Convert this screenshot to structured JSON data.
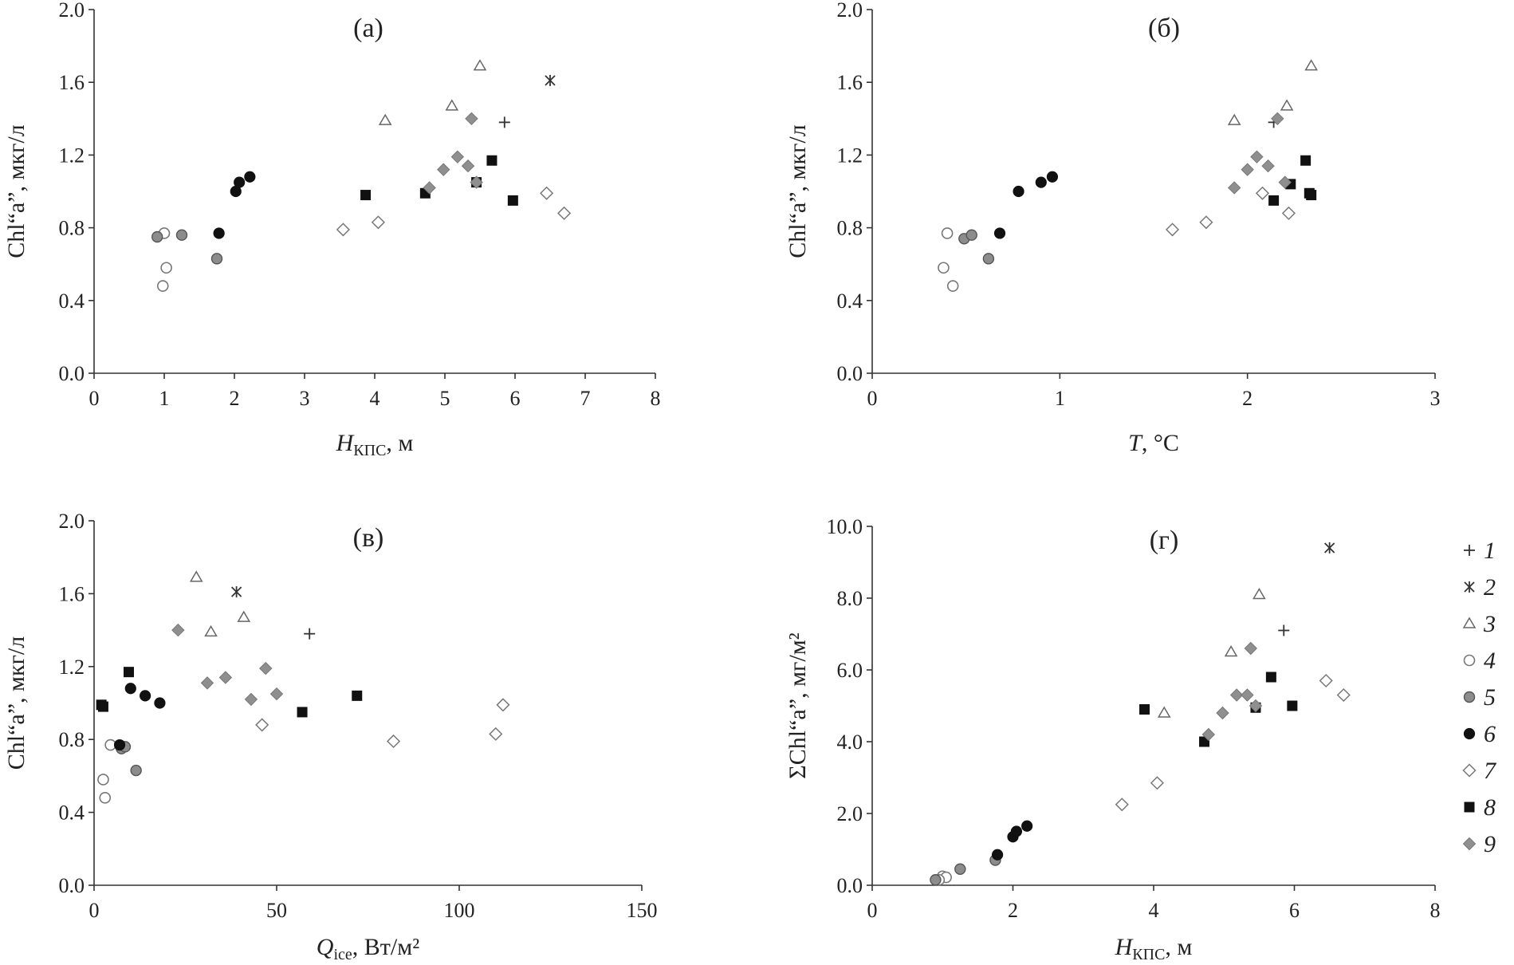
{
  "chart_data": [
    {
      "type": "scatter",
      "title": "(а)",
      "xlabel": {
        "main": "H",
        "sub": "КПС",
        "rest": ", м"
      },
      "ylabel": "Chl“a”, мкг/л",
      "xlim": [
        0,
        8
      ],
      "ylim": [
        0,
        2.0
      ],
      "xticks": [
        "0",
        "1",
        "2",
        "3",
        "4",
        "5",
        "6",
        "7",
        "8"
      ],
      "yticks": [
        "0.0",
        "0.4",
        "0.8",
        "1.2",
        "1.6",
        "2.0"
      ],
      "series": [
        {
          "name": "1",
          "marker": "plus",
          "points": [
            [
              5.85,
              1.38
            ]
          ]
        },
        {
          "name": "2",
          "marker": "star",
          "points": [
            [
              6.5,
              1.61
            ]
          ]
        },
        {
          "name": "3",
          "marker": "triangle",
          "points": [
            [
              4.15,
              1.39
            ],
            [
              5.1,
              1.47
            ],
            [
              5.5,
              1.69
            ]
          ]
        },
        {
          "name": "4",
          "marker": "circle-open",
          "points": [
            [
              1.0,
              0.77
            ],
            [
              1.03,
              0.58
            ],
            [
              0.98,
              0.48
            ]
          ]
        },
        {
          "name": "5",
          "marker": "circle-gray",
          "points": [
            [
              0.9,
              0.75
            ],
            [
              1.25,
              0.76
            ],
            [
              1.75,
              0.63
            ]
          ]
        },
        {
          "name": "6",
          "marker": "circle-black",
          "points": [
            [
              1.78,
              0.77
            ],
            [
              2.02,
              1.0
            ],
            [
              2.07,
              1.05
            ],
            [
              2.22,
              1.08
            ]
          ]
        },
        {
          "name": "7",
          "marker": "diamond-open",
          "points": [
            [
              3.55,
              0.79
            ],
            [
              4.05,
              0.83
            ],
            [
              6.45,
              0.99
            ],
            [
              6.7,
              0.88
            ]
          ]
        },
        {
          "name": "8",
          "marker": "square",
          "points": [
            [
              3.87,
              0.98
            ],
            [
              4.72,
              0.99
            ],
            [
              5.45,
              1.05
            ],
            [
              5.67,
              1.17
            ],
            [
              5.97,
              0.95
            ]
          ]
        },
        {
          "name": "9",
          "marker": "diamond-gray",
          "points": [
            [
              4.78,
              1.02
            ],
            [
              4.98,
              1.12
            ],
            [
              5.18,
              1.19
            ],
            [
              5.33,
              1.14
            ],
            [
              5.38,
              1.4
            ],
            [
              5.45,
              1.05
            ]
          ]
        }
      ]
    },
    {
      "type": "scatter",
      "title": "(б)",
      "xlabel": {
        "main": "T",
        "sub": "",
        "rest": ", °С"
      },
      "ylabel": "Chl“a”, мкг/л",
      "xlim": [
        0,
        3
      ],
      "ylim": [
        0,
        2.0
      ],
      "xticks": [
        "0",
        "1",
        "2",
        "3"
      ],
      "yticks": [
        "0.0",
        "0.4",
        "0.8",
        "1.2",
        "1.6",
        "2.0"
      ],
      "series": [
        {
          "name": "1",
          "marker": "plus",
          "points": [
            [
              2.14,
              1.38
            ]
          ]
        },
        {
          "name": "3",
          "marker": "triangle",
          "points": [
            [
              1.93,
              1.39
            ],
            [
              2.21,
              1.47
            ],
            [
              2.34,
              1.69
            ]
          ]
        },
        {
          "name": "4",
          "marker": "circle-open",
          "points": [
            [
              0.4,
              0.77
            ],
            [
              0.38,
              0.58
            ],
            [
              0.43,
              0.48
            ]
          ]
        },
        {
          "name": "5",
          "marker": "circle-gray",
          "points": [
            [
              0.49,
              0.74
            ],
            [
              0.53,
              0.76
            ],
            [
              0.62,
              0.63
            ]
          ]
        },
        {
          "name": "6",
          "marker": "circle-black",
          "points": [
            [
              0.68,
              0.77
            ],
            [
              0.78,
              1.0
            ],
            [
              0.9,
              1.05
            ],
            [
              0.96,
              1.08
            ]
          ]
        },
        {
          "name": "7",
          "marker": "diamond-open",
          "points": [
            [
              1.6,
              0.79
            ],
            [
              1.78,
              0.83
            ],
            [
              2.08,
              0.99
            ],
            [
              2.22,
              0.88
            ]
          ]
        },
        {
          "name": "8",
          "marker": "square",
          "points": [
            [
              2.14,
              0.95
            ],
            [
              2.23,
              1.04
            ],
            [
              2.31,
              1.17
            ],
            [
              2.33,
              0.99
            ],
            [
              2.34,
              0.98
            ]
          ]
        },
        {
          "name": "9",
          "marker": "diamond-gray",
          "points": [
            [
              1.93,
              1.02
            ],
            [
              2.0,
              1.12
            ],
            [
              2.05,
              1.19
            ],
            [
              2.11,
              1.14
            ],
            [
              2.16,
              1.4
            ],
            [
              2.2,
              1.05
            ]
          ]
        }
      ]
    },
    {
      "type": "scatter",
      "title": "(в)",
      "xlabel": {
        "main": "Q",
        "sub": "ice",
        "rest": ", Вт/м²"
      },
      "ylabel": "Chl“a”, мкг/л",
      "xlim": [
        0,
        150
      ],
      "ylim": [
        0,
        2.0
      ],
      "xticks": [
        "0",
        "50",
        "100",
        "150"
      ],
      "yticks": [
        "0.0",
        "0.4",
        "0.8",
        "1.2",
        "1.6",
        "2.0"
      ],
      "series": [
        {
          "name": "1",
          "marker": "plus",
          "points": [
            [
              59,
              1.38
            ]
          ]
        },
        {
          "name": "2",
          "marker": "star",
          "points": [
            [
              39,
              1.61
            ]
          ]
        },
        {
          "name": "3",
          "marker": "triangle",
          "points": [
            [
              28,
              1.69
            ],
            [
              32,
              1.39
            ],
            [
              41,
              1.47
            ]
          ]
        },
        {
          "name": "4",
          "marker": "circle-open",
          "points": [
            [
              4.5,
              0.77
            ],
            [
              2.5,
              0.58
            ],
            [
              3.0,
              0.48
            ]
          ]
        },
        {
          "name": "5",
          "marker": "circle-gray",
          "points": [
            [
              7.5,
              0.75
            ],
            [
              8.5,
              0.76
            ],
            [
              11.5,
              0.63
            ]
          ]
        },
        {
          "name": "6",
          "marker": "circle-black",
          "points": [
            [
              7.0,
              0.77
            ],
            [
              10.0,
              1.08
            ],
            [
              14.0,
              1.04
            ],
            [
              18.0,
              1.0
            ]
          ]
        },
        {
          "name": "7",
          "marker": "diamond-open",
          "points": [
            [
              46,
              0.88
            ],
            [
              82,
              0.79
            ],
            [
              110,
              0.83
            ],
            [
              112,
              0.99
            ]
          ]
        },
        {
          "name": "8",
          "marker": "square",
          "points": [
            [
              2.0,
              0.99
            ],
            [
              2.5,
              0.98
            ],
            [
              9.5,
              1.17
            ],
            [
              57,
              0.95
            ],
            [
              72,
              1.04
            ]
          ]
        },
        {
          "name": "9",
          "marker": "diamond-gray",
          "points": [
            [
              23,
              1.4
            ],
            [
              31,
              1.11
            ],
            [
              36,
              1.14
            ],
            [
              43,
              1.02
            ],
            [
              47,
              1.19
            ],
            [
              50,
              1.05
            ]
          ]
        }
      ]
    },
    {
      "type": "scatter",
      "title": "(г)",
      "xlabel": {
        "main": "H",
        "sub": "КПС",
        "rest": ", м"
      },
      "ylabel": "ΣChl“a”, мг/м²",
      "xlim": [
        0,
        8
      ],
      "ylim": [
        0,
        10.0
      ],
      "xticks": [
        "0",
        "2",
        "4",
        "6",
        "8"
      ],
      "yticks": [
        "0.0",
        "2.0",
        "4.0",
        "6.0",
        "8.0",
        "10.0"
      ],
      "series": [
        {
          "name": "1",
          "marker": "plus",
          "points": [
            [
              5.85,
              7.1
            ]
          ]
        },
        {
          "name": "2",
          "marker": "star",
          "points": [
            [
              6.5,
              9.4
            ]
          ]
        },
        {
          "name": "3",
          "marker": "triangle",
          "points": [
            [
              4.15,
              4.8
            ],
            [
              5.1,
              6.5
            ],
            [
              5.5,
              8.1
            ]
          ]
        },
        {
          "name": "4",
          "marker": "circle-open",
          "points": [
            [
              1.0,
              0.25
            ],
            [
              1.05,
              0.22
            ],
            [
              0.95,
              0.15
            ]
          ]
        },
        {
          "name": "5",
          "marker": "circle-gray",
          "points": [
            [
              0.9,
              0.15
            ],
            [
              1.25,
              0.45
            ],
            [
              1.75,
              0.7
            ]
          ]
        },
        {
          "name": "6",
          "marker": "circle-black",
          "points": [
            [
              1.78,
              0.85
            ],
            [
              2.0,
              1.35
            ],
            [
              2.05,
              1.5
            ],
            [
              2.2,
              1.65
            ]
          ]
        },
        {
          "name": "7",
          "marker": "diamond-open",
          "points": [
            [
              3.55,
              2.25
            ],
            [
              4.05,
              2.85
            ],
            [
              6.45,
              5.7
            ],
            [
              6.7,
              5.3
            ]
          ]
        },
        {
          "name": "8",
          "marker": "square",
          "points": [
            [
              3.87,
              4.9
            ],
            [
              4.72,
              4.0
            ],
            [
              5.45,
              4.95
            ],
            [
              5.67,
              5.8
            ],
            [
              5.97,
              5.0
            ]
          ]
        },
        {
          "name": "9",
          "marker": "diamond-gray",
          "points": [
            [
              4.78,
              4.2
            ],
            [
              4.98,
              4.8
            ],
            [
              5.18,
              5.3
            ],
            [
              5.33,
              5.3
            ],
            [
              5.38,
              6.6
            ],
            [
              5.45,
              5.0
            ]
          ]
        }
      ]
    }
  ],
  "legend": {
    "position": "right",
    "entries": [
      {
        "label": "1",
        "marker": "plus"
      },
      {
        "label": "2",
        "marker": "star"
      },
      {
        "label": "3",
        "marker": "triangle"
      },
      {
        "label": "4",
        "marker": "circle-open"
      },
      {
        "label": "5",
        "marker": "circle-gray"
      },
      {
        "label": "6",
        "marker": "circle-black"
      },
      {
        "label": "7",
        "marker": "diamond-open"
      },
      {
        "label": "8",
        "marker": "square"
      },
      {
        "label": "9",
        "marker": "diamond-gray"
      }
    ]
  }
}
